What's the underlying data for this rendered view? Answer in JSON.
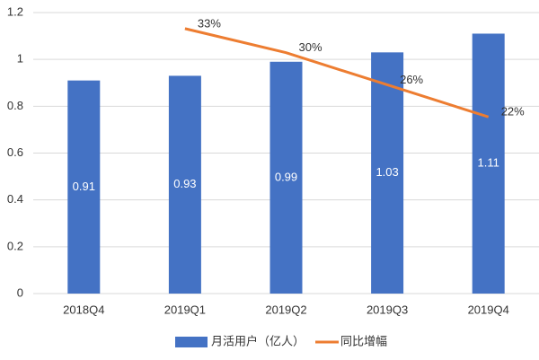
{
  "chart_data": {
    "type": "bar",
    "categories": [
      "2018Q4",
      "2019Q1",
      "2019Q2",
      "2019Q3",
      "2019Q4"
    ],
    "ylim": [
      0,
      1.2
    ],
    "yticks": [
      0,
      0.2,
      0.4,
      0.6,
      0.8,
      1,
      1.2
    ],
    "y2lim": [
      0,
      35
    ],
    "grid": true,
    "series": [
      {
        "name": "月活用户（亿人）",
        "color": "#4472c4",
        "type": "bar",
        "values": [
          0.91,
          0.93,
          0.99,
          1.03,
          1.11
        ]
      },
      {
        "name": "同比增幅",
        "color": "#ed7d31",
        "type": "line",
        "axis": "y2",
        "values": [
          null,
          33,
          30,
          26,
          22
        ],
        "value_labels": [
          null,
          "33%",
          "30%",
          "26%",
          "22%"
        ]
      }
    ]
  }
}
